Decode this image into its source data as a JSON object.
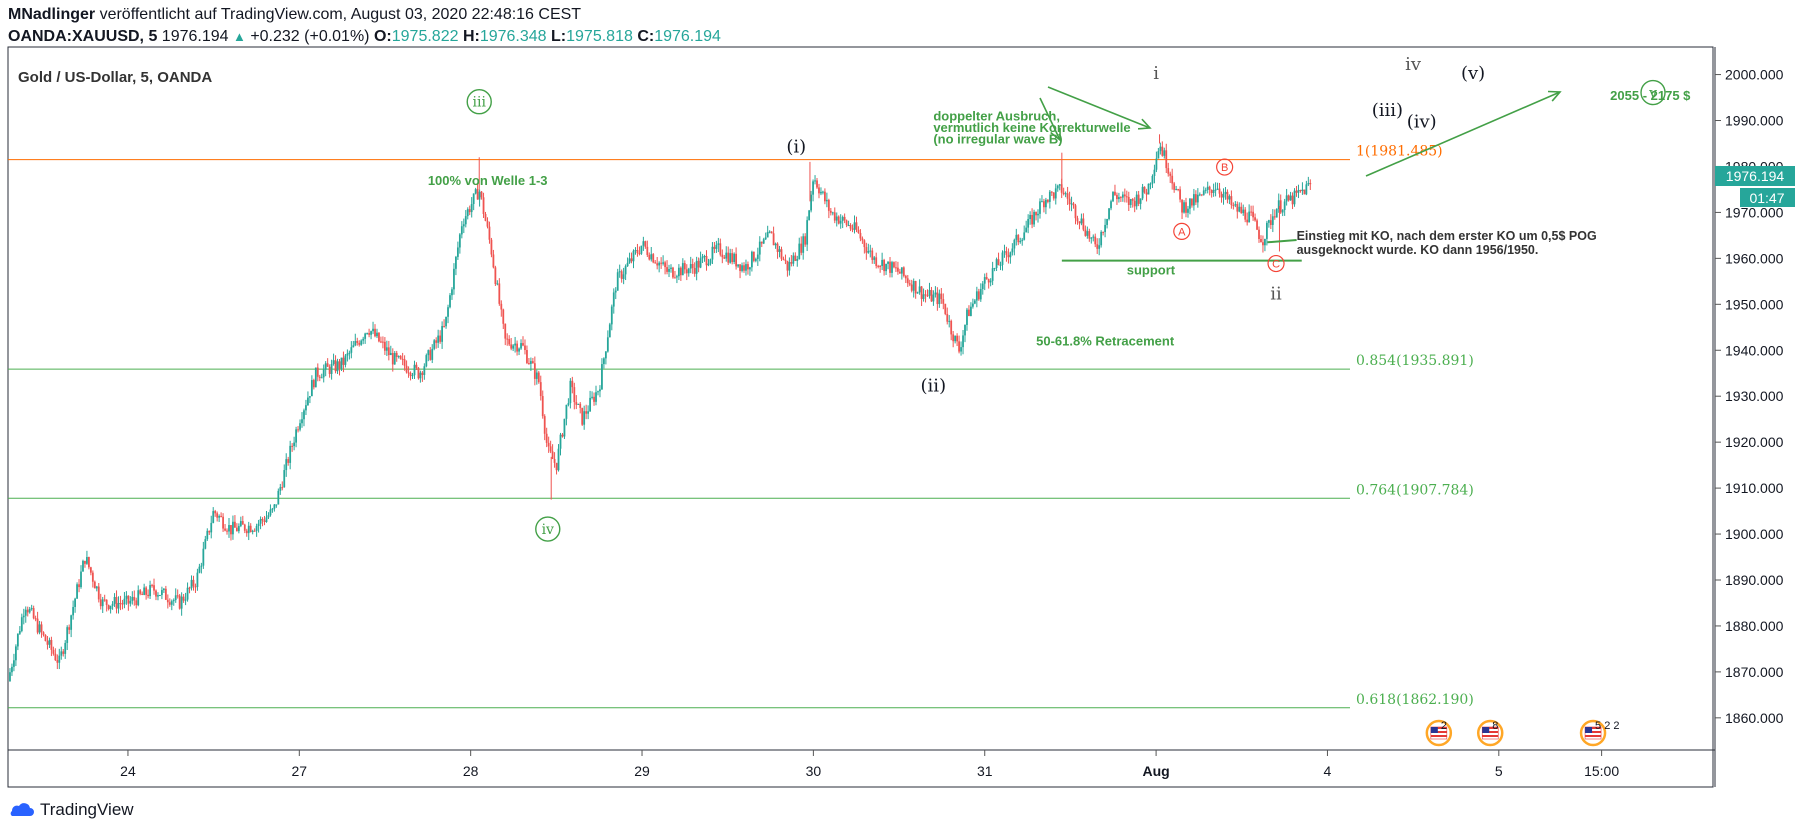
{
  "header": {
    "author": "MNadlinger",
    "published": "veröffentlicht auf TradingView.com, August 03, 2020 22:48:16 CEST",
    "symbol": "OANDA:XAUUSD, 5",
    "last": "1976.194",
    "change": "+0.232 (+0.01%)",
    "o_label": "O:",
    "o": "1975.822",
    "h_label": "H:",
    "h": "1976.348",
    "l_label": "L:",
    "l": "1975.818",
    "c_label": "C:",
    "c": "1976.194"
  },
  "chart_title": "Gold  / US-Dollar, 5, OANDA",
  "price_badge": "1976.194",
  "countdown": "01:47",
  "footer": {
    "brand": "TradingView"
  },
  "colors": {
    "up": "#26a69a",
    "down": "#ef5350",
    "fib": "#4caf50",
    "fib1": "#ff6d00",
    "annot_green": "#43a047",
    "wave_red": "#f44336"
  },
  "chart_data": {
    "type": "candlestick",
    "ylim": [
      1853,
      2006
    ],
    "yticks": [
      "1860.000",
      "1870.000",
      "1880.000",
      "1890.000",
      "1900.000",
      "1910.000",
      "1920.000",
      "1930.000",
      "1940.000",
      "1950.000",
      "1960.000",
      "1970.000",
      "1980.000",
      "1990.000",
      "2000.000"
    ],
    "xticks": [
      {
        "label": "24",
        "t": 3.7
      },
      {
        "label": "27",
        "t": 4.7
      },
      {
        "label": "28",
        "t": 5.7
      },
      {
        "label": "29",
        "t": 6.7
      },
      {
        "label": "30",
        "t": 7.7
      },
      {
        "label": "31",
        "t": 8.7
      },
      {
        "label": "Aug",
        "t": 9.7
      },
      {
        "label": "4",
        "t": 10.7
      },
      {
        "label": "5",
        "t": 11.7
      },
      {
        "label": "15:00",
        "t": 12.3
      }
    ],
    "price_path": [
      [
        3.0,
        1868
      ],
      [
        3.1,
        1885
      ],
      [
        3.2,
        1878
      ],
      [
        3.3,
        1872
      ],
      [
        3.45,
        1895
      ],
      [
        3.55,
        1885
      ],
      [
        3.7,
        1885
      ],
      [
        3.85,
        1888
      ],
      [
        4.0,
        1885
      ],
      [
        4.1,
        1890
      ],
      [
        4.2,
        1905
      ],
      [
        4.3,
        1901
      ],
      [
        4.45,
        1902
      ],
      [
        4.55,
        1905
      ],
      [
        4.7,
        1925
      ],
      [
        4.8,
        1935
      ],
      [
        4.95,
        1937
      ],
      [
        5.1,
        1945
      ],
      [
        5.25,
        1938
      ],
      [
        5.4,
        1935
      ],
      [
        5.55,
        1945
      ],
      [
        5.65,
        1968
      ],
      [
        5.75,
        1975
      ],
      [
        5.82,
        1962
      ],
      [
        5.9,
        1942
      ],
      [
        6.0,
        1941
      ],
      [
        6.1,
        1933
      ],
      [
        6.15,
        1918
      ],
      [
        6.2,
        1915
      ],
      [
        6.28,
        1932
      ],
      [
        6.35,
        1925
      ],
      [
        6.45,
        1932
      ],
      [
        6.55,
        1955
      ],
      [
        6.7,
        1963
      ],
      [
        6.85,
        1957
      ],
      [
        7.0,
        1958
      ],
      [
        7.15,
        1962
      ],
      [
        7.3,
        1958
      ],
      [
        7.45,
        1965
      ],
      [
        7.55,
        1958
      ],
      [
        7.65,
        1964
      ],
      [
        7.7,
        1978
      ],
      [
        7.8,
        1970
      ],
      [
        7.95,
        1966
      ],
      [
        8.05,
        1960
      ],
      [
        8.2,
        1957
      ],
      [
        8.35,
        1952
      ],
      [
        8.45,
        1951
      ],
      [
        8.5,
        1945
      ],
      [
        8.55,
        1940
      ],
      [
        8.6,
        1948
      ],
      [
        8.7,
        1955
      ],
      [
        8.85,
        1962
      ],
      [
        8.95,
        1967
      ],
      [
        9.05,
        1973
      ],
      [
        9.15,
        1975
      ],
      [
        9.25,
        1969
      ],
      [
        9.35,
        1962
      ],
      [
        9.45,
        1974
      ],
      [
        9.55,
        1972
      ],
      [
        9.65,
        1975
      ],
      [
        9.72,
        1985
      ],
      [
        9.78,
        1979
      ],
      [
        9.85,
        1971
      ],
      [
        9.95,
        1973
      ],
      [
        10.05,
        1976
      ],
      [
        10.15,
        1971
      ],
      [
        10.25,
        1969
      ],
      [
        10.32,
        1964
      ],
      [
        10.4,
        1971
      ],
      [
        10.5,
        1973
      ],
      [
        10.6,
        1976
      ]
    ],
    "fib_levels": [
      {
        "label": "1(1981.485)",
        "value": 1981.485
      },
      {
        "label": "0.854(1935.891)",
        "value": 1935.891
      },
      {
        "label": "0.764(1907.784)",
        "value": 1907.784
      },
      {
        "label": "0.618(1862.190)",
        "value": 1862.19
      }
    ],
    "annotations": [
      {
        "text": "iii",
        "t": 5.75,
        "y": 1993,
        "style": "circle-green"
      },
      {
        "text": "iv",
        "t": 6.15,
        "y": 1900,
        "style": "circle-green"
      },
      {
        "text": "v",
        "t": 12.6,
        "y": 1995,
        "style": "circle-green"
      },
      {
        "text": "100% von Welle 1-3",
        "t": 5.45,
        "y": 1976,
        "style": "green-bold"
      },
      {
        "text": "(i)",
        "t": 7.6,
        "y": 1983,
        "style": "black-big"
      },
      {
        "text": "(ii)",
        "t": 8.4,
        "y": 1931,
        "style": "black-big"
      },
      {
        "text": "(iii)",
        "t": 11.05,
        "y": 1991,
        "style": "black-big"
      },
      {
        "text": "(iv)",
        "t": 11.25,
        "y": 1988.5,
        "style": "black-big"
      },
      {
        "text": "(v)",
        "t": 11.55,
        "y": 1999,
        "style": "black-big"
      },
      {
        "text": "i",
        "t": 9.7,
        "y": 1999,
        "style": "gray-big"
      },
      {
        "text": "ii",
        "t": 10.4,
        "y": 1951,
        "style": "gray-big"
      },
      {
        "text": "iv",
        "t": 11.2,
        "y": 2001,
        "style": "gray-big"
      },
      {
        "text": "A",
        "t": 9.85,
        "y": 1965,
        "style": "circle-red"
      },
      {
        "text": "B",
        "t": 10.1,
        "y": 1979,
        "style": "circle-red"
      },
      {
        "text": "C",
        "t": 10.4,
        "y": 1958,
        "style": "circle-red"
      },
      {
        "text": "doppelter Ausbruch,",
        "t": 8.4,
        "y": 1990,
        "style": "green-bold"
      },
      {
        "text": "vermutlich keine Korrekturwelle",
        "t": 8.4,
        "y": 1987.5,
        "style": "green-bold"
      },
      {
        "text": "(no irregular wave B)",
        "t": 8.4,
        "y": 1985,
        "style": "green-bold"
      },
      {
        "text": "support",
        "t": 9.67,
        "y": 1956.5,
        "style": "green-bold"
      },
      {
        "text": "50-61.8% Retracement",
        "t": 9.0,
        "y": 1941,
        "style": "green-bold"
      },
      {
        "text": "Einstieg mit KO, nach dem erster KO um 0,5$ POG",
        "t": 10.52,
        "y": 1964,
        "style": "black-bold"
      },
      {
        "text": "ausgeknockt wurde. KO dann 1956/1950.",
        "t": 10.52,
        "y": 1961,
        "style": "black-bold"
      },
      {
        "text": "2055 - 2175 $",
        "t": 12.35,
        "y": 1994.5,
        "style": "green-bold"
      }
    ],
    "event_icons": [
      {
        "t": 11.35,
        "label": "2"
      },
      {
        "t": 11.65,
        "label": "8"
      },
      {
        "t": 12.25,
        "label": "5 2 2"
      }
    ]
  }
}
